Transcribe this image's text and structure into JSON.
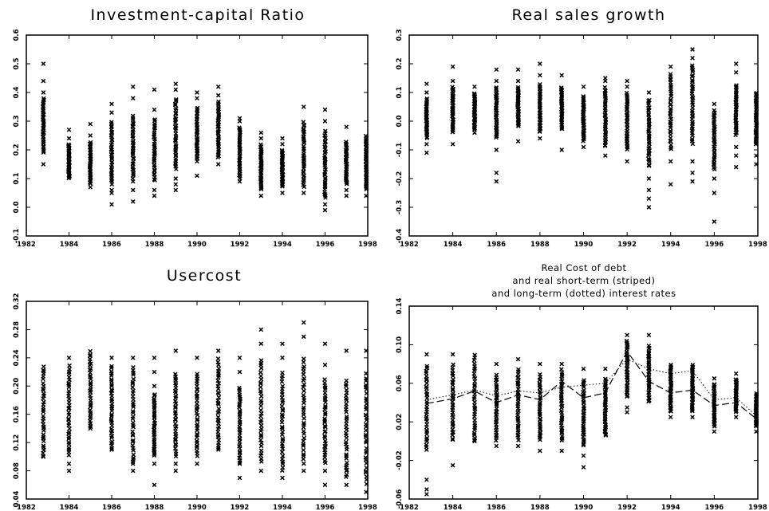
{
  "chart_data": [
    {
      "type": "scatter",
      "title": "Investment-capital Ratio",
      "subtitle": [],
      "ylim": [
        -0.1,
        0.6
      ],
      "yticks": [
        "-0.1",
        "0.0",
        "0.1",
        "0.2",
        "0.3",
        "0.4",
        "0.5",
        "0.6"
      ],
      "xlim": [
        1982,
        1998
      ],
      "xticks": [
        "1982",
        "1984",
        "1986",
        "1988",
        "1990",
        "1992",
        "1994",
        "1996",
        "1998"
      ],
      "x": [
        1982.8,
        1984,
        1985,
        1986,
        1987,
        1988,
        1989,
        1990,
        1991,
        1992,
        1993,
        1994,
        1995,
        1996,
        1997,
        1998
      ],
      "clusters": [
        {
          "dense": [
            0.19,
            0.38
          ],
          "sparse": [
            0.15,
            0.21,
            0.4,
            0.44,
            0.5
          ]
        },
        {
          "dense": [
            0.1,
            0.22
          ],
          "sparse": [
            0.24,
            0.27
          ]
        },
        {
          "dense": [
            0.08,
            0.23
          ],
          "sparse": [
            0.07,
            0.25,
            0.29
          ]
        },
        {
          "dense": [
            0.08,
            0.3
          ],
          "sparse": [
            0.01,
            0.05,
            0.06,
            0.33,
            0.36
          ]
        },
        {
          "dense": [
            0.1,
            0.32
          ],
          "sparse": [
            0.02,
            0.06,
            0.09,
            0.38,
            0.42
          ]
        },
        {
          "dense": [
            0.09,
            0.31
          ],
          "sparse": [
            0.04,
            0.06,
            0.34,
            0.41
          ]
        },
        {
          "dense": [
            0.13,
            0.38
          ],
          "sparse": [
            0.06,
            0.08,
            0.1,
            0.41,
            0.43
          ]
        },
        {
          "dense": [
            0.16,
            0.35
          ],
          "sparse": [
            0.11,
            0.38,
            0.4
          ]
        },
        {
          "dense": [
            0.17,
            0.37
          ],
          "sparse": [
            0.15,
            0.39,
            0.42
          ]
        },
        {
          "dense": [
            0.1,
            0.28
          ],
          "sparse": [
            0.09,
            0.3,
            0.31
          ]
        },
        {
          "dense": [
            0.06,
            0.22
          ],
          "sparse": [
            0.04,
            0.24,
            0.26
          ]
        },
        {
          "dense": [
            0.07,
            0.2
          ],
          "sparse": [
            0.05,
            0.22,
            0.24
          ]
        },
        {
          "dense": [
            0.07,
            0.3
          ],
          "sparse": [
            0.05,
            0.35
          ]
        },
        {
          "dense": [
            0.03,
            0.27
          ],
          "sparse": [
            -0.01,
            0.01,
            0.3,
            0.34
          ]
        },
        {
          "dense": [
            0.08,
            0.23
          ],
          "sparse": [
            0.04,
            0.06,
            0.28
          ]
        },
        {
          "dense": [
            0.06,
            0.25
          ],
          "sparse": [
            0.04
          ]
        }
      ]
    },
    {
      "type": "scatter",
      "title": "Real sales growth",
      "subtitle": [],
      "ylim": [
        -0.4,
        0.3
      ],
      "yticks": [
        "-0.4",
        "-0.3",
        "-0.2",
        "-0.1",
        "0.0",
        "0.1",
        "0.2",
        "0.3"
      ],
      "xlim": [
        1982,
        1998
      ],
      "xticks": [
        "1982",
        "1984",
        "1986",
        "1988",
        "1990",
        "1992",
        "1994",
        "1996",
        "1998"
      ],
      "x": [
        1982.8,
        1984,
        1985,
        1986,
        1987,
        1988,
        1989,
        1990,
        1991,
        1992,
        1993,
        1994,
        1995,
        1996,
        1997,
        1998
      ],
      "clusters": [
        {
          "dense": [
            -0.06,
            0.08
          ],
          "sparse": [
            -0.11,
            -0.08,
            0.1,
            0.13
          ]
        },
        {
          "dense": [
            -0.04,
            0.12
          ],
          "sparse": [
            -0.08,
            0.14,
            0.19
          ]
        },
        {
          "dense": [
            -0.03,
            0.1
          ],
          "sparse": [
            -0.04,
            0.12
          ]
        },
        {
          "dense": [
            -0.06,
            0.12
          ],
          "sparse": [
            -0.21,
            -0.18,
            -0.1,
            0.14,
            0.18
          ]
        },
        {
          "dense": [
            -0.02,
            0.12
          ],
          "sparse": [
            -0.07,
            0.14,
            0.18
          ]
        },
        {
          "dense": [
            -0.04,
            0.13
          ],
          "sparse": [
            -0.06,
            0.16,
            0.2
          ]
        },
        {
          "dense": [
            -0.03,
            0.12
          ],
          "sparse": [
            -0.1,
            0.16
          ]
        },
        {
          "dense": [
            -0.07,
            0.09
          ],
          "sparse": [
            -0.09,
            0.12
          ]
        },
        {
          "dense": [
            -0.09,
            0.12
          ],
          "sparse": [
            -0.12,
            0.14,
            0.15
          ]
        },
        {
          "dense": [
            -0.1,
            0.1
          ],
          "sparse": [
            -0.14,
            0.12,
            0.14
          ]
        },
        {
          "dense": [
            -0.16,
            0.08
          ],
          "sparse": [
            -0.3,
            -0.27,
            -0.24,
            -0.2,
            0.1
          ]
        },
        {
          "dense": [
            -0.1,
            0.17
          ],
          "sparse": [
            -0.22,
            -0.14,
            0.19
          ]
        },
        {
          "dense": [
            -0.08,
            0.2
          ],
          "sparse": [
            -0.21,
            -0.18,
            -0.14,
            0.22,
            0.25
          ]
        },
        {
          "dense": [
            -0.17,
            0.04
          ],
          "sparse": [
            -0.35,
            -0.25,
            -0.2,
            0.06
          ]
        },
        {
          "dense": [
            -0.05,
            0.13
          ],
          "sparse": [
            -0.16,
            -0.12,
            -0.09,
            0.17,
            0.2
          ]
        },
        {
          "dense": [
            -0.08,
            0.1
          ],
          "sparse": [
            -0.15,
            -0.12
          ]
        }
      ]
    },
    {
      "type": "scatter",
      "title": "Usercost",
      "subtitle": [],
      "ylim": [
        0.04,
        0.32
      ],
      "yticks": [
        "0.04",
        "0.08",
        "0.12",
        "0.16",
        "0.20",
        "0.24",
        "0.28",
        "0.32"
      ],
      "xlim": [
        1982,
        1998
      ],
      "xticks": [
        "1982",
        "1984",
        "1986",
        "1988",
        "1990",
        "1992",
        "1994",
        "1996",
        "1998"
      ],
      "x": [
        1982.8,
        1984,
        1985,
        1986,
        1987,
        1988,
        1989,
        1990,
        1991,
        1992,
        1993,
        1994,
        1995,
        1996,
        1997,
        1998
      ],
      "clusters": [
        {
          "dense": [
            0.1,
            0.23
          ],
          "sparse": [
            0.1
          ]
        },
        {
          "dense": [
            0.1,
            0.23
          ],
          "sparse": [
            0.08,
            0.09,
            0.24
          ]
        },
        {
          "dense": [
            0.14,
            0.25
          ],
          "sparse": [
            0.14
          ]
        },
        {
          "dense": [
            0.11,
            0.23
          ],
          "sparse": [
            0.11,
            0.24
          ]
        },
        {
          "dense": [
            0.09,
            0.23
          ],
          "sparse": [
            0.08,
            0.09,
            0.24
          ]
        },
        {
          "dense": [
            0.1,
            0.19
          ],
          "sparse": [
            0.06,
            0.09,
            0.2,
            0.22,
            0.24
          ]
        },
        {
          "dense": [
            0.1,
            0.22
          ],
          "sparse": [
            0.08,
            0.09,
            0.25
          ]
        },
        {
          "dense": [
            0.1,
            0.22
          ],
          "sparse": [
            0.09,
            0.24
          ]
        },
        {
          "dense": [
            0.11,
            0.24
          ],
          "sparse": [
            0.11,
            0.25
          ]
        },
        {
          "dense": [
            0.09,
            0.2
          ],
          "sparse": [
            0.07,
            0.09,
            0.22,
            0.24
          ]
        },
        {
          "dense": [
            0.09,
            0.24
          ],
          "sparse": [
            0.08,
            0.26,
            0.28
          ]
        },
        {
          "dense": [
            0.08,
            0.22
          ],
          "sparse": [
            0.07,
            0.24,
            0.26
          ]
        },
        {
          "dense": [
            0.09,
            0.24
          ],
          "sparse": [
            0.08,
            0.27,
            0.29
          ]
        },
        {
          "dense": [
            0.09,
            0.21
          ],
          "sparse": [
            0.06,
            0.08,
            0.23,
            0.26
          ]
        },
        {
          "dense": [
            0.07,
            0.21
          ],
          "sparse": [
            0.06,
            0.08,
            0.25
          ]
        },
        {
          "dense": [
            0.06,
            0.22
          ],
          "sparse": [
            0.05,
            0.25
          ]
        }
      ]
    },
    {
      "type": "scatter",
      "title": "",
      "subtitle": [
        "Real Cost of debt",
        "and real short-term (striped)",
        "and long-term (dotted) interest rates"
      ],
      "ylim": [
        -0.06,
        0.14
      ],
      "yticks": [
        "-0.06",
        "-0.02",
        "0.02",
        "0.06",
        "0.10",
        "0.14"
      ],
      "xlim": [
        1982,
        1998
      ],
      "xticks": [
        "1982",
        "1984",
        "1986",
        "1988",
        "1990",
        "1992",
        "1994",
        "1996",
        "1998"
      ],
      "x": [
        1982.8,
        1984,
        1985,
        1986,
        1987,
        1988,
        1989,
        1990,
        1991,
        1992,
        1993,
        1994,
        1995,
        1996,
        1997,
        1998
      ],
      "clusters": [
        {
          "dense": [
            -0.01,
            0.08
          ],
          "sparse": [
            -0.055,
            -0.05,
            -0.04,
            0.09
          ]
        },
        {
          "dense": [
            0.0,
            0.08
          ],
          "sparse": [
            -0.025,
            0.09
          ]
        },
        {
          "dense": [
            0.0,
            0.09
          ],
          "sparse": [
            0.0
          ]
        },
        {
          "dense": [
            0.0,
            0.07
          ],
          "sparse": [
            -0.005,
            0.08
          ]
        },
        {
          "dense": [
            0.0,
            0.075
          ],
          "sparse": [
            -0.005,
            0.085
          ]
        },
        {
          "dense": [
            0.0,
            0.07
          ],
          "sparse": [
            -0.01,
            0.08
          ]
        },
        {
          "dense": [
            0.0,
            0.075
          ],
          "sparse": [
            -0.01,
            0.08
          ]
        },
        {
          "dense": [
            -0.005,
            0.065
          ],
          "sparse": [
            -0.027,
            -0.015,
            0.075
          ]
        },
        {
          "dense": [
            0.005,
            0.065
          ],
          "sparse": [
            0.075
          ]
        },
        {
          "dense": [
            0.045,
            0.105
          ],
          "sparse": [
            0.03,
            0.035,
            0.11
          ]
        },
        {
          "dense": [
            0.04,
            0.1
          ],
          "sparse": [
            0.11
          ]
        },
        {
          "dense": [
            0.03,
            0.08
          ],
          "sparse": [
            0.025
          ]
        },
        {
          "dense": [
            0.03,
            0.08
          ],
          "sparse": [
            0.025
          ]
        },
        {
          "dense": [
            0.015,
            0.06
          ],
          "sparse": [
            0.01,
            0.065
          ]
        },
        {
          "dense": [
            0.03,
            0.065
          ],
          "sparse": [
            0.025,
            0.07
          ]
        },
        {
          "dense": [
            0.015,
            0.05
          ],
          "sparse": [
            0.01
          ]
        }
      ],
      "series": [
        {
          "values": [
            0.039,
            0.044,
            0.052,
            0.04,
            0.048,
            0.043,
            0.062,
            0.045,
            0.05,
            0.093,
            0.062,
            0.05,
            0.053,
            0.037,
            0.04,
            0.022
          ],
          "style": "dashed"
        },
        {
          "values": [
            0.043,
            0.048,
            0.053,
            0.047,
            0.052,
            0.05,
            0.056,
            0.058,
            0.06,
            0.085,
            0.075,
            0.07,
            0.073,
            0.043,
            0.045,
            0.025
          ],
          "style": "dotted"
        }
      ]
    }
  ]
}
